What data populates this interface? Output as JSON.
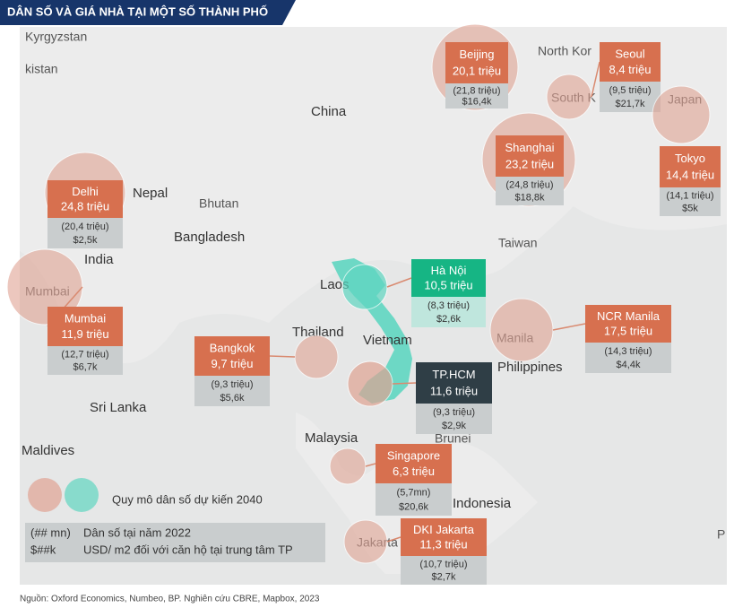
{
  "header": {
    "title": "DÂN SỐ VÀ GIÁ NHÀ TẠI MỘT SỐ THÀNH PHỐ"
  },
  "map_labels": [
    "Kyrgyzstan",
    "kistan",
    "China",
    "Nepal",
    "Bhutan",
    "Bangladesh",
    "India",
    "North Kor",
    "South K",
    "Japan",
    "Taiwan",
    "Laos",
    "Thailand",
    "Vietnam",
    "Philippines",
    "Sri Lanka",
    "Maldives",
    "Malaysia",
    "Brunei",
    "Indonesia",
    "Mumbai",
    "Manila",
    "Jakarta",
    "P"
  ],
  "cities": [
    {
      "name": "Beijing",
      "population": "20,1 triệu",
      "projection": "(21,8 triệu)",
      "price": "$16,4k"
    },
    {
      "name": "Seoul",
      "population": "8,4 triệu",
      "projection": "(9,5 triệu)",
      "price": "$21,7k"
    },
    {
      "name": "Tokyo",
      "population": "14,4 triệu",
      "projection": "(14,1 triệu)",
      "price": "$5k"
    },
    {
      "name": "Shanghai",
      "population": "23,2 triệu",
      "projection": "(24,8 triệu)",
      "price": "$18,8k"
    },
    {
      "name": "Delhi",
      "population": "24,8 triệu",
      "projection": "(20,4 triệu)",
      "price": "$2,5k"
    },
    {
      "name": "Mumbai",
      "population": "11,9 triệu",
      "projection": "(12,7 triệu)",
      "price": "$6,7k"
    },
    {
      "name": "Hà Nội",
      "population": "10,5 triệu",
      "projection": "(8,3 triệu)",
      "price": "$2,6k"
    },
    {
      "name": "NCR Manila",
      "population": "17,5 triệu",
      "projection": "(14,3 triệu)",
      "price": "$4,4k"
    },
    {
      "name": "Bangkok",
      "population": "9,7 triệu",
      "projection": "(9,3 triệu)",
      "price": "$5,6k"
    },
    {
      "name": "TP.HCM",
      "population": "11,6 triệu",
      "projection": "(9,3 triệu)",
      "price": "$2,9k"
    },
    {
      "name": "Singapore",
      "population": "6,3 triệu",
      "projection": "(5,7mn)",
      "price": "$20,6k"
    },
    {
      "name": "DKI Jakarta",
      "population": "11,3 triệu",
      "projection": "(10,7 triệu)",
      "price": "$2,7k"
    }
  ],
  "legend": {
    "projection": "Quy mô dân số dự kiến 2040",
    "rows": [
      {
        "code": "(## mn)",
        "text": "Dân số tại năm 2022"
      },
      {
        "code": "$##k",
        "text": "USD/ m2 đối với căn hộ tại trung tâm TP"
      }
    ]
  },
  "source": "Nguồn: Oxford Economics, Numbeo, BP. Nghiên cứu CBRE, Mapbox, 2023"
}
